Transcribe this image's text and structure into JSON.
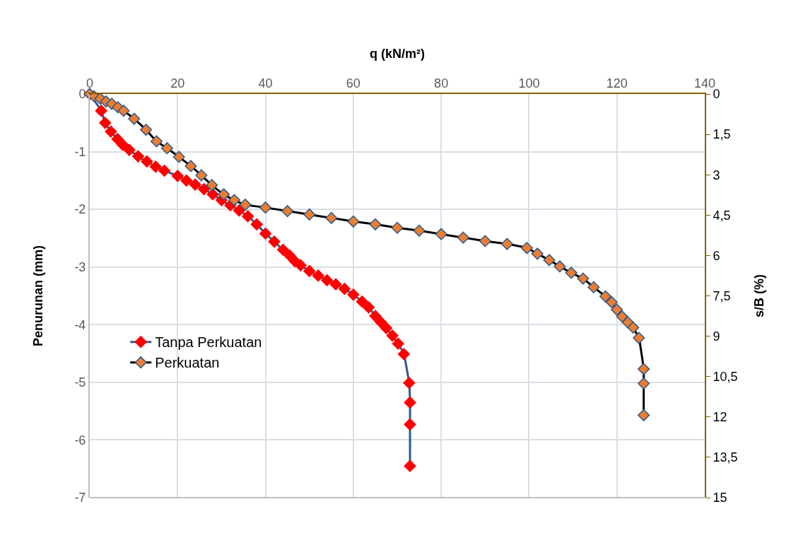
{
  "chart_data": {
    "type": "line",
    "xlabel": "q (kN/m²)",
    "ylabel": "Penurunan (mm)",
    "y2label": "s/B (%)",
    "xlim": [
      0,
      140
    ],
    "xticks": [
      0,
      20,
      40,
      60,
      80,
      100,
      120,
      140
    ],
    "ylim": [
      -7,
      0
    ],
    "yticks": [
      -7,
      -6,
      -5,
      -4,
      -3,
      -2,
      -1,
      0
    ],
    "y2lim": [
      15,
      0
    ],
    "y2ticks": [
      0,
      {
        "value": 1.5,
        "label": "1,5"
      },
      3,
      {
        "value": 4.5,
        "label": "4,5"
      },
      6,
      {
        "value": 7.5,
        "label": "7,5"
      },
      9,
      {
        "value": 10.5,
        "label": "10,5"
      },
      12,
      {
        "value": 13.5,
        "label": "13,5"
      },
      15
    ],
    "grid": true,
    "legend": "left",
    "marker": "diamond",
    "line_style": "solid",
    "series": [
      {
        "name": "Tanpa Perkuatan",
        "color": "#ff0000",
        "x": [
          0,
          2.6,
          3.5,
          4.8,
          6.3,
          7.5,
          9,
          11,
          13,
          15,
          17,
          20,
          22,
          24,
          26,
          28,
          30,
          32,
          34,
          36,
          38,
          40,
          42,
          44,
          45.5,
          46.7,
          48,
          50,
          52,
          54,
          56,
          58,
          60,
          62,
          63.5,
          65,
          66.3,
          67.5,
          68.9,
          70.2,
          71.5,
          72.7,
          72.9,
          72.9,
          72.9
        ],
        "values": [
          0,
          -0.29,
          -0.5,
          -0.65,
          -0.78,
          -0.88,
          -0.97,
          -1.08,
          -1.17,
          -1.26,
          -1.33,
          -1.42,
          -1.5,
          -1.57,
          -1.65,
          -1.74,
          -1.84,
          -1.93,
          -2.02,
          -2.12,
          -2.26,
          -2.42,
          -2.56,
          -2.7,
          -2.8,
          -2.9,
          -2.97,
          -3.07,
          -3.15,
          -3.23,
          -3.3,
          -3.38,
          -3.48,
          -3.6,
          -3.7,
          -3.85,
          -3.96,
          -4.06,
          -4.19,
          -4.33,
          -4.51,
          -5.01,
          -5.35,
          -5.73,
          -6.45
        ]
      },
      {
        "name": "Perkuatan",
        "color": "#ed7d31",
        "x": [
          0,
          1,
          2.4,
          3.7,
          5,
          6.4,
          7.7,
          10.1,
          12.8,
          15.2,
          17.6,
          20.3,
          23,
          25.4,
          27.8,
          30.5,
          32.9,
          35.4,
          40,
          45,
          50,
          55,
          60,
          65,
          70,
          75,
          80,
          85,
          90,
          95,
          99.5,
          101.9,
          104.6,
          107,
          109.6,
          112.3,
          114.7,
          117.4,
          118.8,
          120,
          121.2,
          122.5,
          123.7,
          125,
          126.1,
          126.1,
          126.1
        ],
        "values": [
          0,
          -0.04,
          -0.08,
          -0.13,
          -0.17,
          -0.23,
          -0.29,
          -0.43,
          -0.62,
          -0.82,
          -0.94,
          -1.09,
          -1.25,
          -1.41,
          -1.58,
          -1.74,
          -1.84,
          -1.92,
          -1.97,
          -2.03,
          -2.09,
          -2.15,
          -2.21,
          -2.26,
          -2.32,
          -2.37,
          -2.43,
          -2.49,
          -2.55,
          -2.6,
          -2.67,
          -2.77,
          -2.88,
          -2.99,
          -3.1,
          -3.2,
          -3.35,
          -3.51,
          -3.61,
          -3.74,
          -3.86,
          -3.96,
          -4.05,
          -4.23,
          -4.77,
          -5.02,
          -5.57
        ]
      }
    ]
  }
}
